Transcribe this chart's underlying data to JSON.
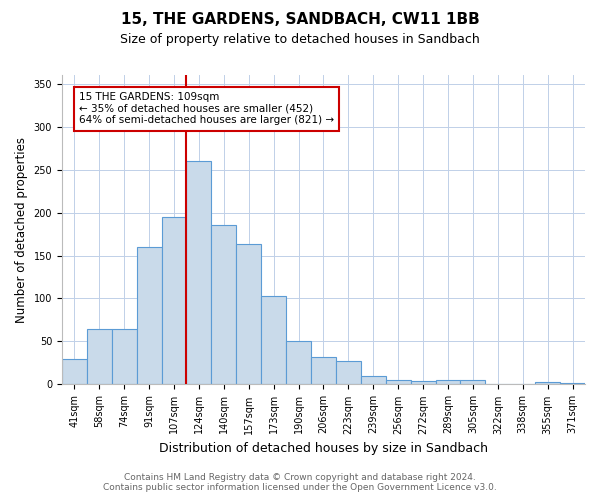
{
  "title": "15, THE GARDENS, SANDBACH, CW11 1BB",
  "subtitle": "Size of property relative to detached houses in Sandbach",
  "xlabel": "Distribution of detached houses by size in Sandbach",
  "ylabel": "Number of detached properties",
  "categories": [
    "41sqm",
    "58sqm",
    "74sqm",
    "91sqm",
    "107sqm",
    "124sqm",
    "140sqm",
    "157sqm",
    "173sqm",
    "190sqm",
    "206sqm",
    "223sqm",
    "239sqm",
    "256sqm",
    "272sqm",
    "289sqm",
    "305sqm",
    "322sqm",
    "338sqm",
    "355sqm",
    "371sqm"
  ],
  "values": [
    30,
    65,
    65,
    160,
    195,
    260,
    185,
    163,
    103,
    50,
    32,
    27,
    10,
    5,
    4,
    5,
    5,
    0,
    0,
    3,
    2
  ],
  "bar_color": "#c9daea",
  "bar_edge_color": "#5b9bd5",
  "property_bar_index": 4,
  "red_line_color": "#cc0000",
  "annotation_text_line1": "15 THE GARDENS: 109sqm",
  "annotation_text_line2": "← 35% of detached houses are smaller (452)",
  "annotation_text_line3": "64% of semi-detached houses are larger (821) →",
  "annotation_box_color": "#ffffff",
  "annotation_box_edge_color": "#cc0000",
  "ylim": [
    0,
    360
  ],
  "yticks": [
    0,
    50,
    100,
    150,
    200,
    250,
    300,
    350
  ],
  "footer_line1": "Contains HM Land Registry data © Crown copyright and database right 2024.",
  "footer_line2": "Contains public sector information licensed under the Open Government Licence v3.0.",
  "background_color": "#ffffff",
  "grid_color": "#c0d0e8",
  "title_fontsize": 11,
  "subtitle_fontsize": 9,
  "axis_label_fontsize": 8.5,
  "tick_fontsize": 7,
  "footer_fontsize": 6.5,
  "annotation_fontsize": 7.5
}
